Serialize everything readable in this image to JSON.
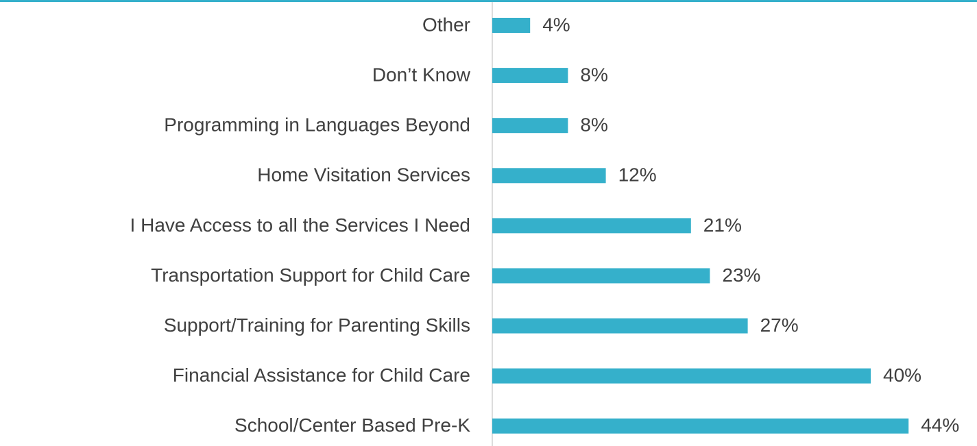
{
  "chart_data": {
    "type": "hbar",
    "categories": [
      "Other",
      "Don’t Know",
      "Programming in Languages Beyond",
      "Home Visitation Services",
      "I Have Access to all the Services I Need",
      "Transportation Support for Child Care",
      "Support/Training for Parenting Skills",
      "Financial Assistance for Child Care",
      "School/Center Based Pre-K"
    ],
    "values": [
      4,
      8,
      8,
      12,
      21,
      23,
      27,
      40,
      44
    ],
    "value_labels": [
      "4%",
      "8%",
      "8%",
      "12%",
      "21%",
      "23%",
      "27%",
      "40%",
      "44%"
    ],
    "color": "#35b0cb",
    "xlim": [
      0,
      50
    ]
  }
}
